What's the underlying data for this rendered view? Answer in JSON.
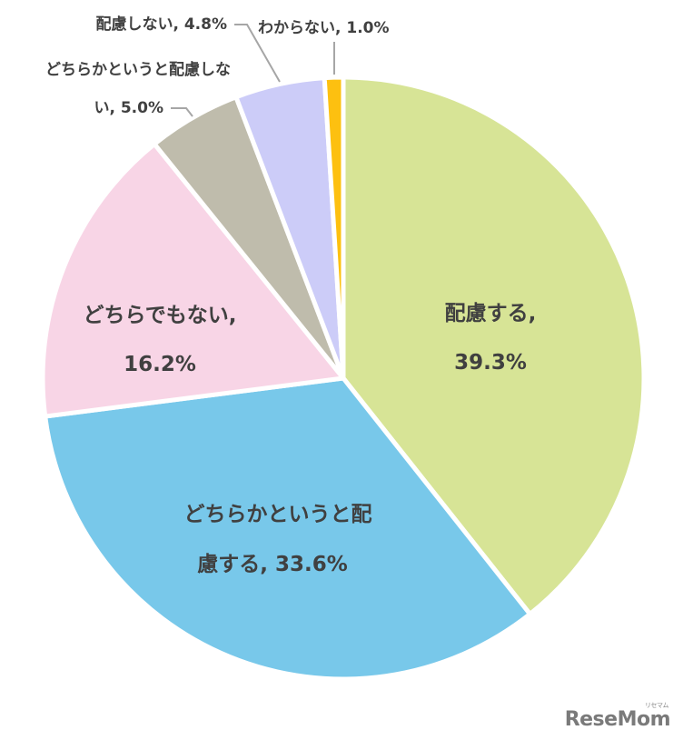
{
  "chart_data": {
    "type": "pie",
    "title": "",
    "start_angle_deg": 0,
    "direction": "clockwise",
    "slices": [
      {
        "label": "配慮する",
        "value": 39.3,
        "color": "#D7E496",
        "label_text_1": "配慮する,",
        "label_text_2": "39.3%"
      },
      {
        "label": "どちらかというと配慮する",
        "value": 33.6,
        "color": "#78C8EA",
        "label_text_1": "どちらかというと配",
        "label_text_2": "慮する, 33.6%"
      },
      {
        "label": "どちらでもない",
        "value": 16.2,
        "color": "#F8D5E6",
        "label_text_1": "どちらでもない,",
        "label_text_2": "16.2%"
      },
      {
        "label": "どちらかというと配慮しない",
        "value": 5.0,
        "color": "#BFBCAC",
        "label_text_1": "どちらかというと配慮しな",
        "label_text_2": "い, 5.0%"
      },
      {
        "label": "配慮しない",
        "value": 4.8,
        "color": "#CCCCF8",
        "label_text_1": "配慮しない, 4.8%"
      },
      {
        "label": "わからない",
        "value": 1.0,
        "color": "#FDC010",
        "label_text_1": "わからない, 1.0%"
      }
    ],
    "legend": "none",
    "data_labels": "category, percent"
  },
  "watermark": {
    "text": "ReseMom",
    "sub": "リセマム"
  }
}
